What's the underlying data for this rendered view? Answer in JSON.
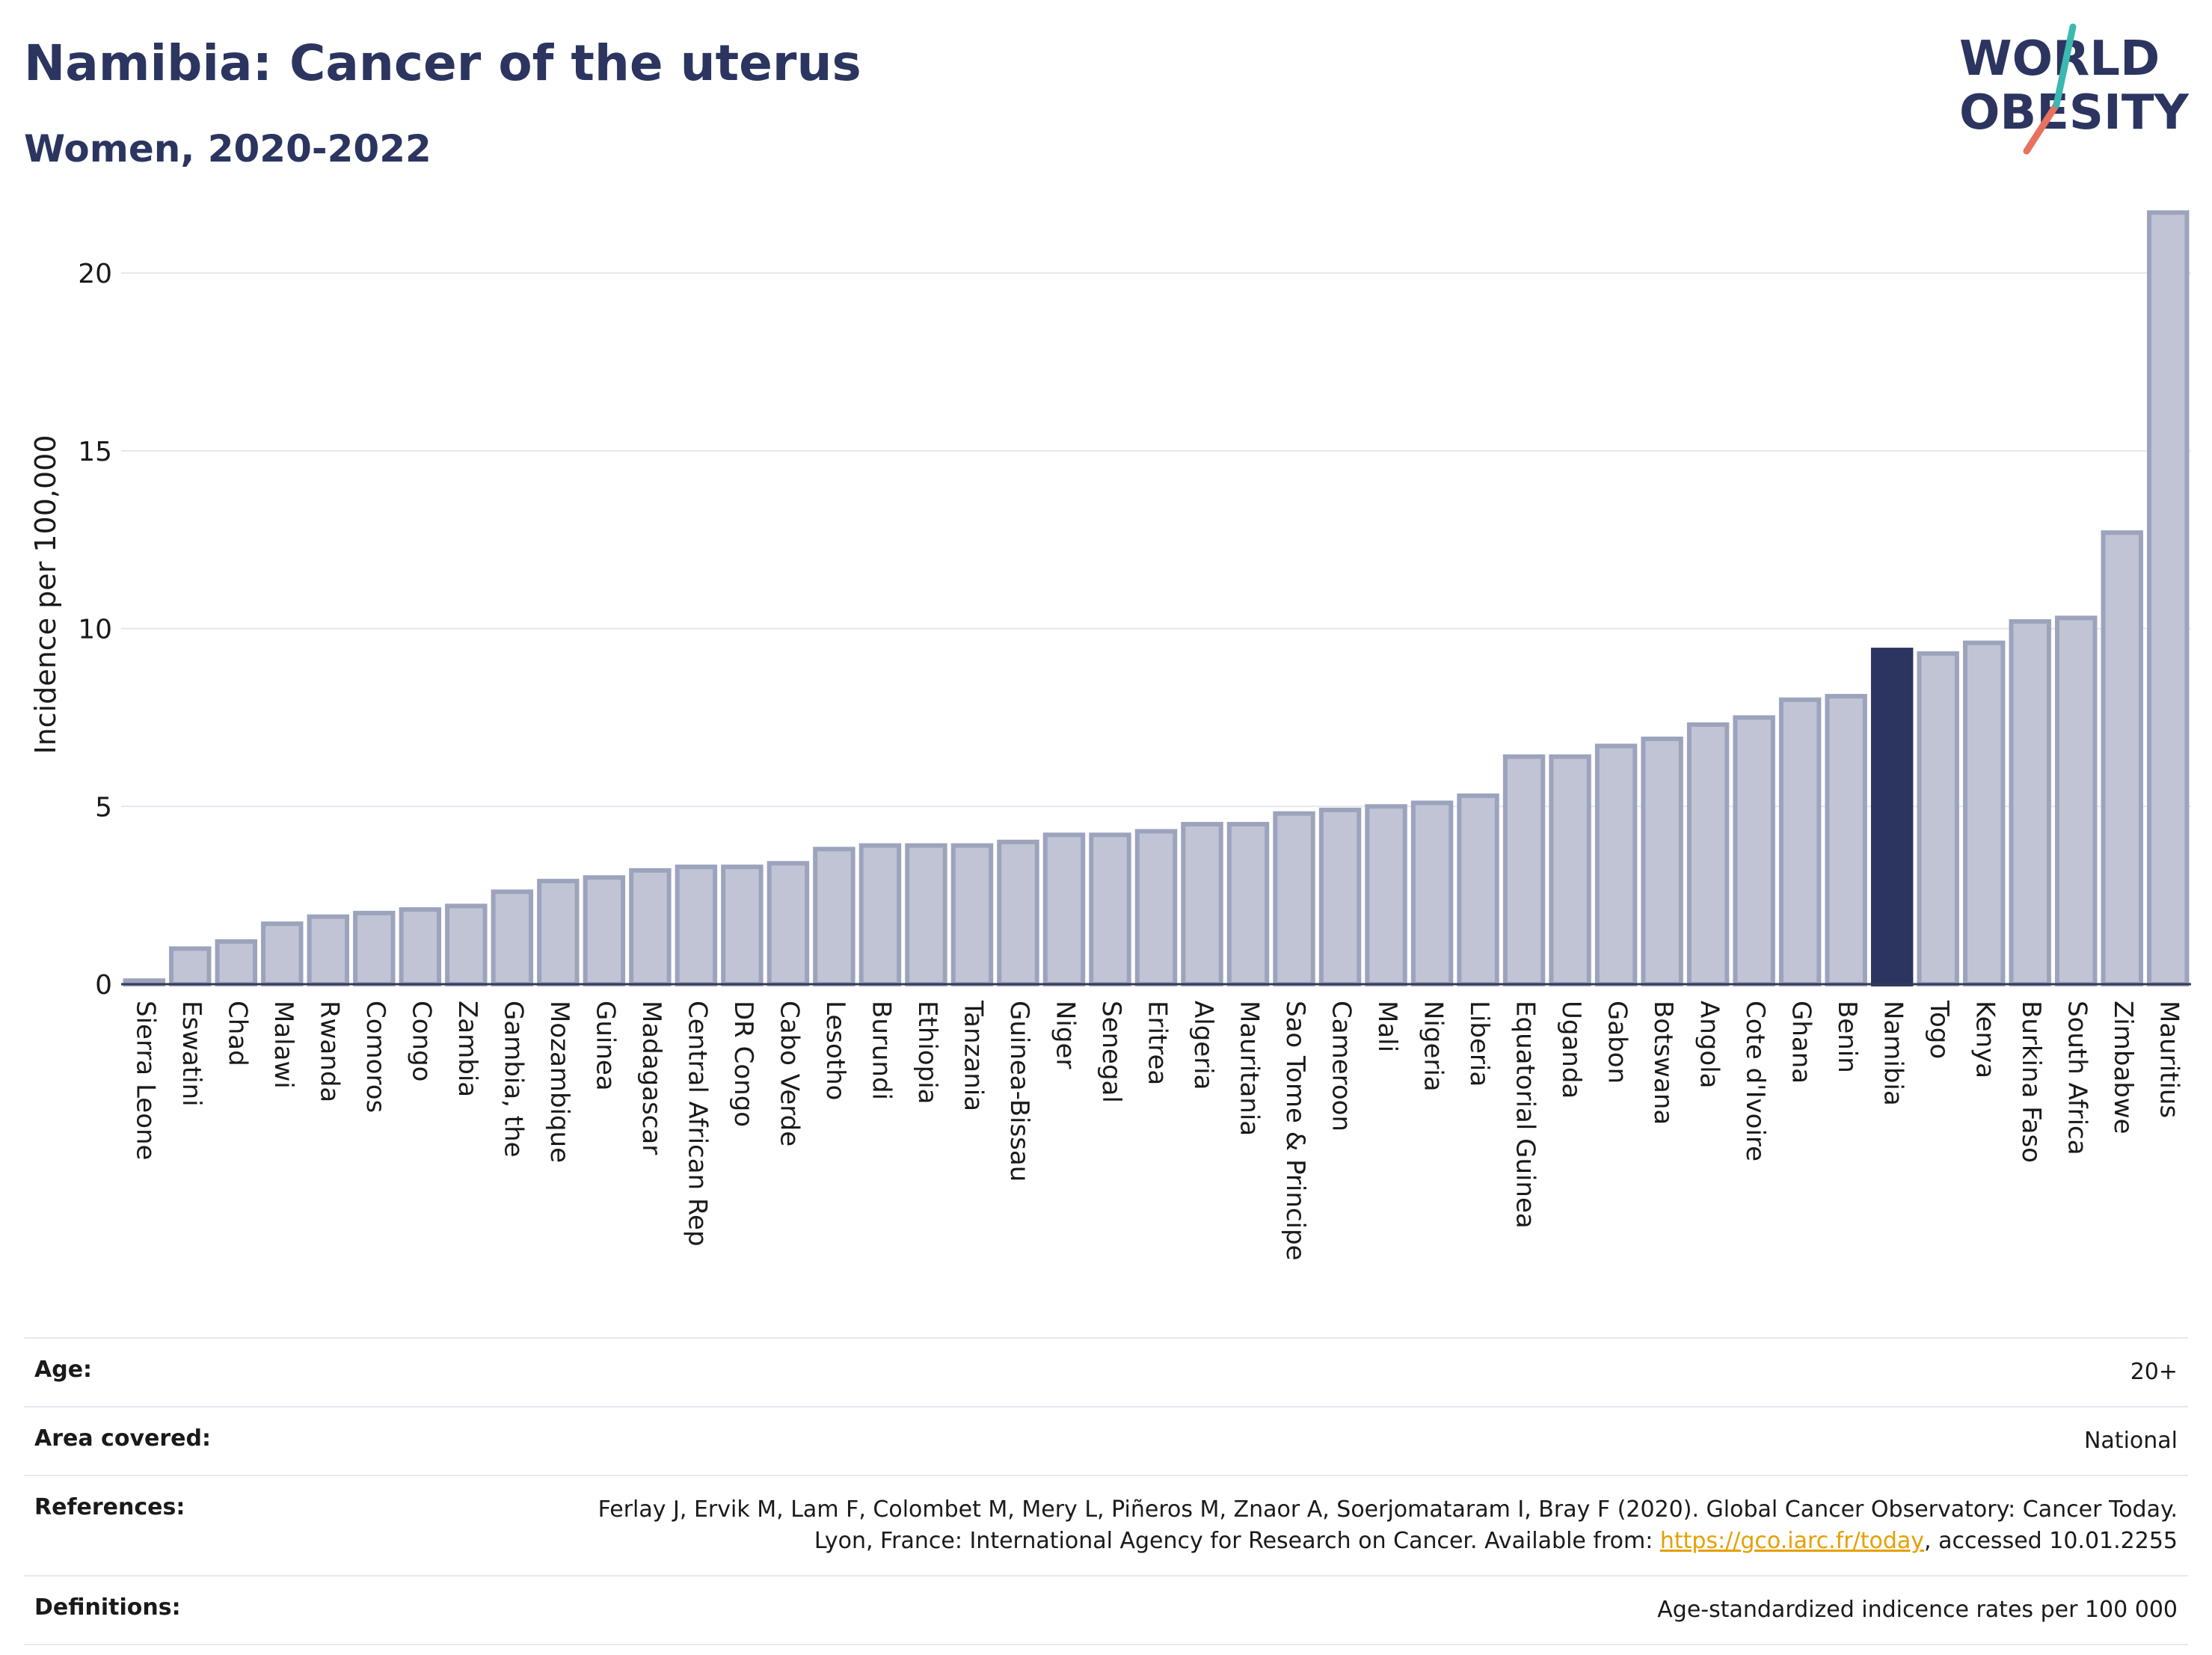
{
  "header": {
    "title": "Namibia: Cancer of the uterus",
    "subtitle": "Women, 2020-2022"
  },
  "logo": {
    "line1": "WORLD",
    "line2": "OBESITY"
  },
  "chart_data": {
    "type": "bar",
    "title": "Namibia: Cancer of the uterus",
    "subtitle": "Women, 2020-2022",
    "ylabel": "Incidence per 100,000",
    "xlabel": "",
    "ylim": [
      0,
      22
    ],
    "yticks": [
      0,
      5,
      10,
      15,
      20
    ],
    "grid": true,
    "highlight": "Namibia",
    "colors": {
      "bar": "#c0c4d4",
      "bar_edge": "#9ca3bd",
      "highlight": "#2b3560"
    },
    "categories": [
      "Sierra Leone",
      "Eswatini",
      "Chad",
      "Malawi",
      "Rwanda",
      "Comoros",
      "Congo",
      "Zambia",
      "Gambia, the",
      "Mozambique",
      "Guinea",
      "Madagascar",
      "Central African Rep",
      "DR Congo",
      "Cabo Verde",
      "Lesotho",
      "Burundi",
      "Ethiopia",
      "Tanzania",
      "Guinea-Bissau",
      "Niger",
      "Senegal",
      "Eritrea",
      "Algeria",
      "Mauritania",
      "Sao Tome & Principe",
      "Cameroon",
      "Mali",
      "Nigeria",
      "Liberia",
      "Equatorial Guinea",
      "Uganda",
      "Gabon",
      "Botswana",
      "Angola",
      "Cote d'Ivoire",
      "Ghana",
      "Benin",
      "Namibia",
      "Togo",
      "Kenya",
      "Burkina Faso",
      "South Africa",
      "Zimbabwe",
      "Mauritius"
    ],
    "values": [
      0.1,
      1.0,
      1.2,
      1.7,
      1.9,
      2.0,
      2.1,
      2.2,
      2.6,
      2.9,
      3.0,
      3.2,
      3.3,
      3.3,
      3.4,
      3.8,
      3.9,
      3.9,
      3.9,
      4.0,
      4.2,
      4.2,
      4.3,
      4.5,
      4.5,
      4.8,
      4.9,
      5.0,
      5.1,
      5.3,
      6.4,
      6.4,
      6.7,
      6.9,
      7.3,
      7.5,
      8.0,
      8.1,
      9.4,
      9.3,
      9.6,
      10.2,
      10.3,
      12.7,
      21.7
    ]
  },
  "meta": {
    "age_label": "Age:",
    "age_value": "20+",
    "area_label": "Area covered:",
    "area_value": "National",
    "references_label": "References:",
    "references_text": "Ferlay J, Ervik M, Lam F, Colombet M, Mery L, Piñeros M, Znaor A, Soerjomataram I, Bray F (2020). Global Cancer Observatory: Cancer Today. Lyon, France: International Agency for Research on Cancer. Available from: ",
    "references_link": "https://gco.iarc.fr/today",
    "references_suffix": ", accessed 10.01.2255",
    "definitions_label": "Definitions:",
    "definitions_value": "Age-standardized indicence rates per 100 000"
  }
}
